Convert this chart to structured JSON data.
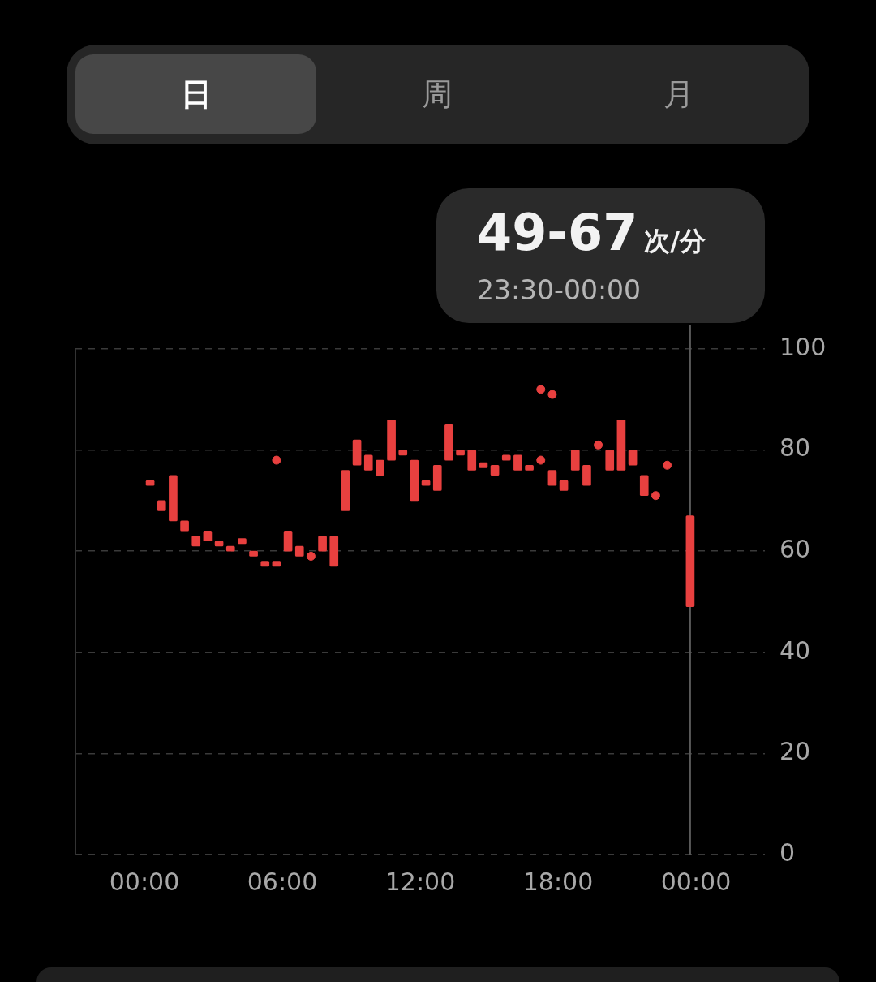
{
  "chart_data": {
    "type": "bar",
    "annotations": [
      "日",
      "周",
      "月",
      "49-67",
      "次/分",
      "23:30-00:00"
    ],
    "xlim": [
      0,
      24
    ],
    "xticks": [
      {
        "value": 0,
        "label": "00:00"
      },
      {
        "value": 6,
        "label": "06:00"
      },
      {
        "value": 12,
        "label": "12:00"
      },
      {
        "value": 18,
        "label": "18:00"
      },
      {
        "value": 24,
        "label": "00:00"
      }
    ],
    "ylim": [
      0,
      100
    ],
    "yticks": [
      0,
      20,
      40,
      60,
      80,
      100
    ],
    "grid": "y",
    "legend": false,
    "ref_lines": [
      {
        "axis": "x",
        "value": 23.75,
        "color": "#5a5a5a"
      }
    ],
    "series": [
      {
        "color": "#e8403f",
        "x": [
          0.25,
          0.75,
          1.25,
          1.75,
          2.25,
          2.75,
          3.25,
          3.75,
          4.25,
          4.75,
          5.25,
          5.75,
          6.25,
          6.75,
          7.75,
          8.25,
          8.75,
          9.25,
          9.75,
          10.25,
          10.75,
          11.25,
          11.75,
          12.25,
          12.75,
          13.25,
          13.75,
          14.25,
          14.75,
          15.25,
          15.75,
          16.25,
          16.75,
          17.75,
          18.25,
          18.75,
          19.25,
          20.25,
          20.75,
          21.25,
          21.75,
          23.75
        ],
        "base": [
          73,
          68,
          66,
          64,
          61,
          62,
          61,
          60,
          61.5,
          59,
          57,
          57,
          60,
          59,
          60,
          57,
          68,
          77,
          76,
          75,
          78,
          79,
          70,
          73,
          72,
          78,
          79,
          76,
          76.5,
          75,
          78,
          76,
          76,
          73,
          72,
          76,
          73,
          76,
          76,
          77,
          71,
          49
        ],
        "values": [
          1,
          2,
          9,
          2,
          2,
          2,
          1,
          1,
          1,
          1,
          1,
          1,
          4,
          2,
          3,
          6,
          8,
          5,
          3,
          3,
          8,
          1,
          8,
          1,
          5,
          7,
          1,
          4,
          1,
          2,
          1,
          3,
          1,
          3,
          2,
          4,
          4,
          4,
          10,
          3,
          4,
          18
        ]
      },
      {
        "type": "scatter",
        "color": "#e8403f",
        "marker": "circle",
        "x": [
          5.75,
          7.25,
          17.25,
          17.25,
          17.75,
          19.75,
          22.25,
          22.75
        ],
        "values": [
          78,
          59,
          92,
          78,
          91,
          81,
          71,
          77
        ]
      }
    ]
  }
}
